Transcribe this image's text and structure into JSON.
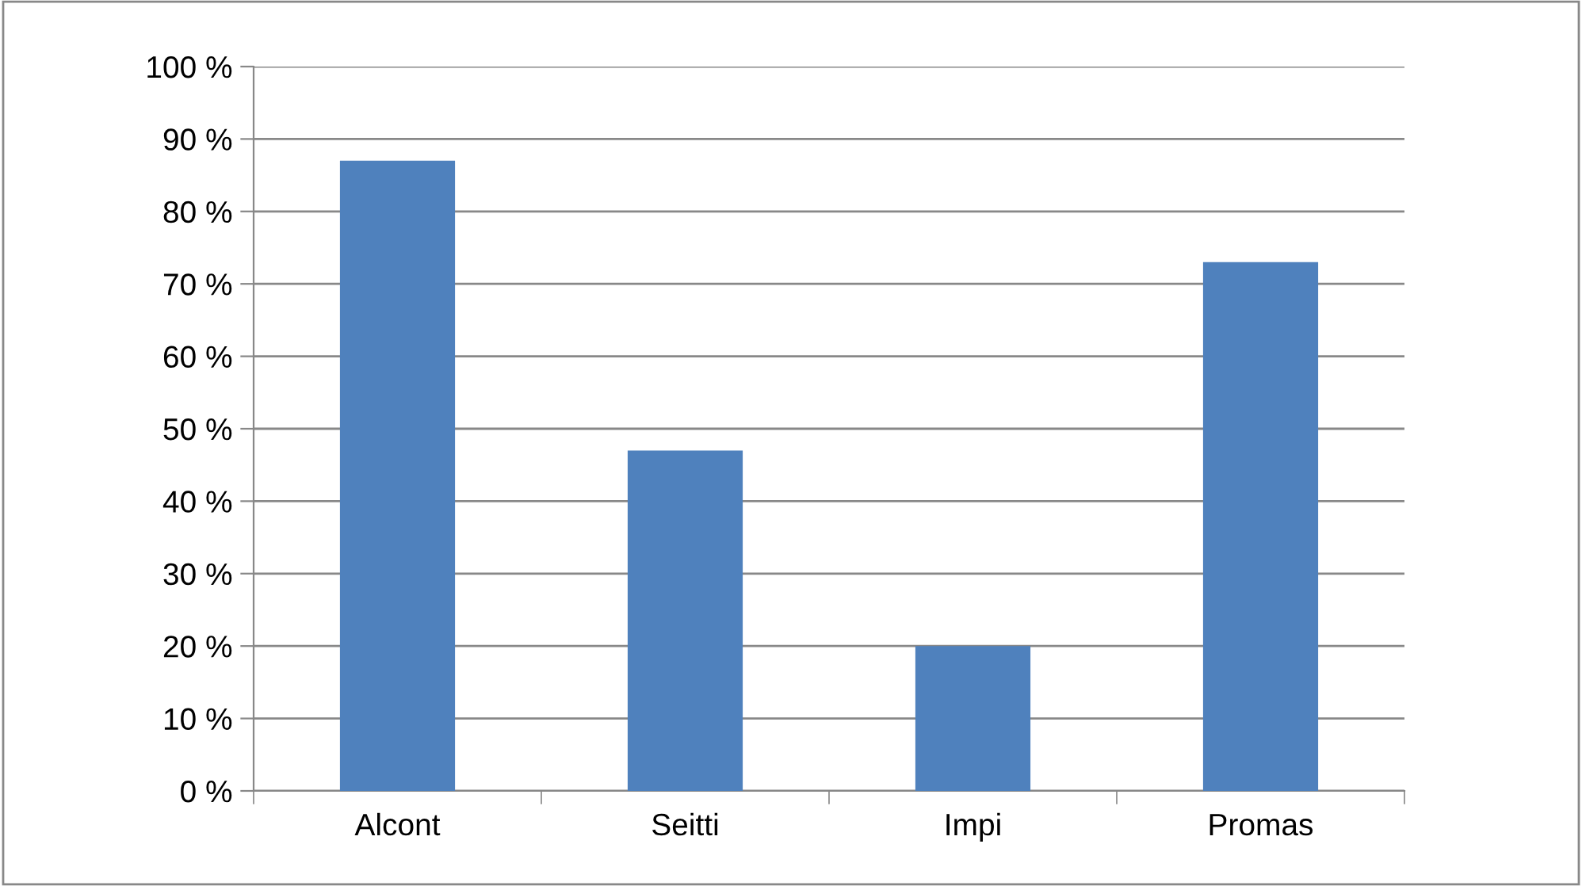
{
  "chart_data": {
    "type": "bar",
    "categories": [
      "Alcont",
      "Seitti",
      "Impi",
      "Promas"
    ],
    "values": [
      87,
      47,
      20,
      73
    ],
    "color": "#4f81bd",
    "ylim": [
      0,
      100
    ],
    "yticks": [
      {
        "value": 0,
        "label": "0 %"
      },
      {
        "value": 10,
        "label": "10 %"
      },
      {
        "value": 20,
        "label": "20 %"
      },
      {
        "value": 30,
        "label": "30 %"
      },
      {
        "value": 40,
        "label": "40 %"
      },
      {
        "value": 50,
        "label": "50 %"
      },
      {
        "value": 60,
        "label": "60 %"
      },
      {
        "value": 70,
        "label": "70 %"
      },
      {
        "value": 80,
        "label": "80 %"
      },
      {
        "value": 90,
        "label": "90 %"
      },
      {
        "value": 100,
        "label": "100 %"
      }
    ],
    "grid": "y"
  }
}
